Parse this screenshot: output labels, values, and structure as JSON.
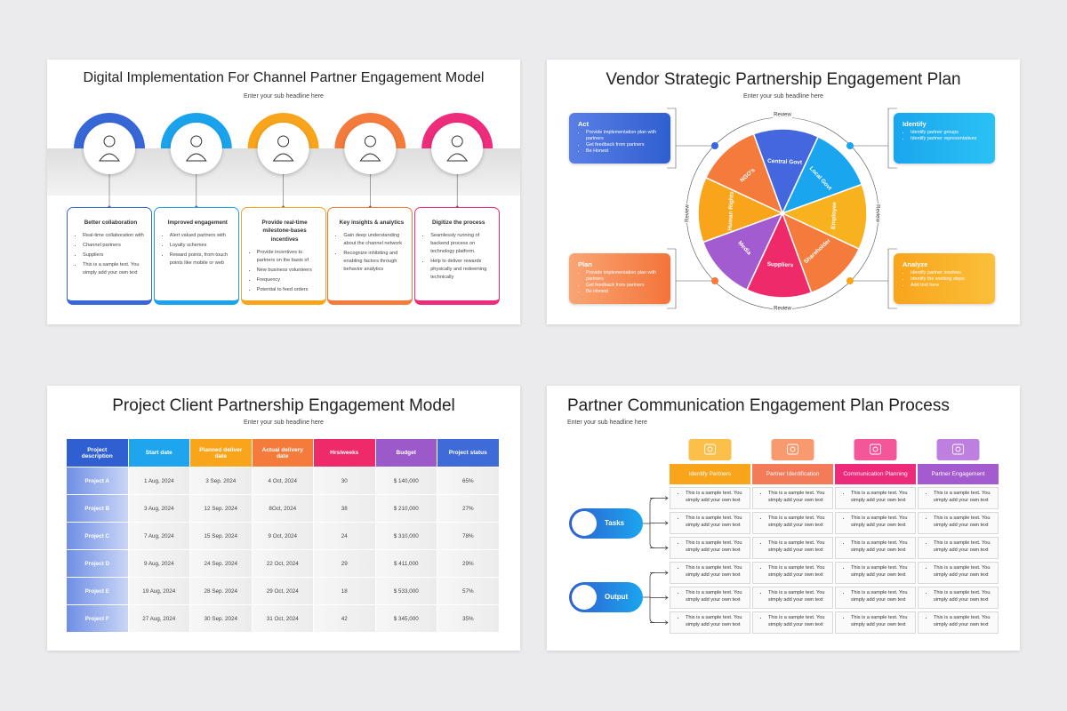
{
  "slides": [
    {
      "title": "Digital Implementation For Channel Partner Engagement Model",
      "subtitle": "Enter your sub headline here",
      "columns": [
        {
          "title": "Better collaboration",
          "items": [
            "Real-time collaboration with",
            "Channel partners",
            "Suppliers",
            "This is a sample text. You simply add your own text"
          ]
        },
        {
          "title": "Improved engagement",
          "items": [
            "Alert valued partners with",
            "Loyalty schemes",
            "Reward points, from touch points like mobile or web"
          ]
        },
        {
          "title": "Provide real-time milestone-bases incentives",
          "items": [
            "Provide incentives to partners on the basis of",
            "New business volunteers",
            "Frequency",
            "Potential to feed orders"
          ]
        },
        {
          "title": "Key insights & analytics",
          "items": [
            "Gain deep understanding about the channel network",
            "Recognize inhibiting and enabling factors through behavior analytics"
          ]
        },
        {
          "title": "Digitize the process",
          "items": [
            "Seamlessly running of backend process on technology platform.",
            "Help to deliver rewards physically and redeeming technically"
          ]
        }
      ]
    },
    {
      "title": "Vendor Strategic Partnership Engagement Plan",
      "subtitle": "Enter your sub headline here",
      "segments": [
        "Central Govt",
        "Local Govt",
        "Employee",
        "Shareholder",
        "Suppliers",
        "Media",
        "Human Rights",
        "NGO's"
      ],
      "review": [
        "Review",
        "Review",
        "Review",
        "Review"
      ],
      "boxes": [
        {
          "title": "Act",
          "items": [
            "Provide implementation plan with partners",
            "Get feedback from partners",
            "Be Honest"
          ]
        },
        {
          "title": "Identify",
          "items": [
            "Identify partner groups",
            "Identify partner representatives"
          ]
        },
        {
          "title": "Plan",
          "items": [
            "Provide implementation plan with partners",
            "Get feedback from partners",
            "Be Honest"
          ]
        },
        {
          "title": "Analyze",
          "items": [
            "Identify partner involves",
            "Identify the working steps",
            "Add text here"
          ]
        }
      ]
    },
    {
      "title": "Project Client Partnership Engagement Model",
      "subtitle": "Enter your sub headline here",
      "table": {
        "header": [
          "Project description",
          "Start date",
          "Planned deliver date",
          "Actual delivery date",
          "Hrs/weeks",
          "Budget",
          "Project status"
        ],
        "rows": [
          [
            "Project A",
            "1 Aug, 2024",
            "3 Sep. 2024",
            "4 Oct, 2024",
            "30",
            "$ 140,000",
            "65%"
          ],
          [
            "Project B",
            "3 Aug, 2024",
            "12 Sep. 2024",
            "8Oct, 2024",
            "38",
            "$ 210,000",
            "27%"
          ],
          [
            "Project C",
            "7 Aug, 2024",
            "15 Sep. 2024",
            "9 Oct, 2024",
            "24",
            "$ 310,000",
            "78%"
          ],
          [
            "Project D",
            "9 Aug, 2024",
            "24 Sep. 2024",
            "22 Oct, 2024",
            "29",
            "$ 411,000",
            "29%"
          ],
          [
            "Project E",
            "19 Aug, 2024",
            "28 Sep. 2024",
            "29 Oct, 2024",
            "18",
            "$ 533,000",
            "57%"
          ],
          [
            "Project F",
            "27 Aug, 2024",
            "30 Sep. 2024",
            "31 Oct, 2024",
            "42",
            "$ 345,000",
            "35%"
          ]
        ]
      }
    },
    {
      "title": "Partner Communication Engagement Plan Process",
      "subtitle": "Enter your sub headline here",
      "columns": [
        "Identify Partners",
        "Partner Identification",
        "Communication Planning",
        "Partner Engagement"
      ],
      "groups": [
        {
          "label": "Tasks",
          "rows": [
            [
              "This is a sample text. You simply add your own text",
              "This is a sample text. You simply add your own text",
              "This is a sample text. You simply add your own text",
              "This is a sample text. You simply add your own text"
            ],
            [
              "This is a sample text. You simply add your own text",
              "This is a sample text. You simply add your own text",
              "This is a sample text. You simply add your own text",
              "This is a sample text. You simply add your own text"
            ],
            [
              "This is a sample text. You simply add your own text",
              "This is a sample text. You simply add your own text",
              "This is a sample text. You simply add your own text",
              "This is a sample text. You simply add your own text"
            ]
          ]
        },
        {
          "label": "Output",
          "rows": [
            [
              "This is a sample text. You simply add your own text",
              "This is a sample text. You simply add your own text",
              "This is a sample text. You simply add your own text",
              "This is a sample text. You simply add your own text"
            ],
            [
              "This is a sample text. You simply add your own text",
              "This is a sample text. You simply add your own text",
              "This is a sample text. You simply add your own text",
              "This is a sample text. You simply add your own text"
            ],
            [
              "This is a sample text. You simply add your own text",
              "This is a sample text. You simply add your own text",
              "This is a sample text. You simply add your own text",
              "This is a sample text. You simply add your own text"
            ]
          ]
        }
      ]
    }
  ]
}
